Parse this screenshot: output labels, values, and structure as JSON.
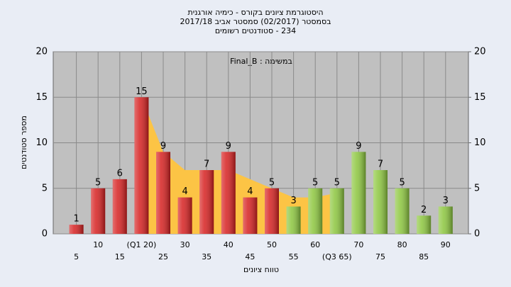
{
  "chart_data": {
    "type": "bar",
    "title": "היסטוגרמת ציונים בקורס - כימיה אורגנית",
    "subtitle": "בסמסטר (02/2017) סמסטר אביב 2017/18",
    "subtitle2": "234 - סטודנטים רשומים",
    "annotation": "במשימה : Final_B",
    "y_label": "מספר סטודנטים",
    "x_label": "טווח ציונים",
    "categories": [
      "5",
      "10",
      "15",
      "(Q1 20)",
      "25",
      "30",
      "35",
      "40",
      "45",
      "50",
      "55",
      "60",
      "(Q3 65)",
      "70",
      "75",
      "80",
      "85",
      "90"
    ],
    "values": [
      1,
      5,
      6,
      15,
      9,
      4,
      7,
      9,
      4,
      5,
      3,
      5,
      5,
      9,
      7,
      5,
      2,
      3
    ],
    "colors": [
      "#d62020",
      "#d62020",
      "#d62020",
      "#d62020",
      "#d62020",
      "#d62020",
      "#d62020",
      "#d62020",
      "#d62020",
      "#d62020",
      "#8cc63e",
      "#8cc63e",
      "#8cc63e",
      "#8cc63e",
      "#8cc63e",
      "#8cc63e",
      "#8cc63e",
      "#8cc63e"
    ],
    "area": {
      "color": "#fcc445",
      "values": [
        null,
        null,
        null,
        15,
        9,
        7,
        7,
        7,
        6,
        5,
        4,
        4,
        4.5,
        null,
        null,
        null,
        null,
        null
      ]
    },
    "ylim": [
      0,
      20
    ],
    "yticks": [
      0,
      5,
      10,
      15,
      20
    ],
    "y2lim": [
      0,
      20
    ],
    "y2ticks": [
      0,
      5,
      10,
      15,
      20
    ],
    "grid": true
  }
}
